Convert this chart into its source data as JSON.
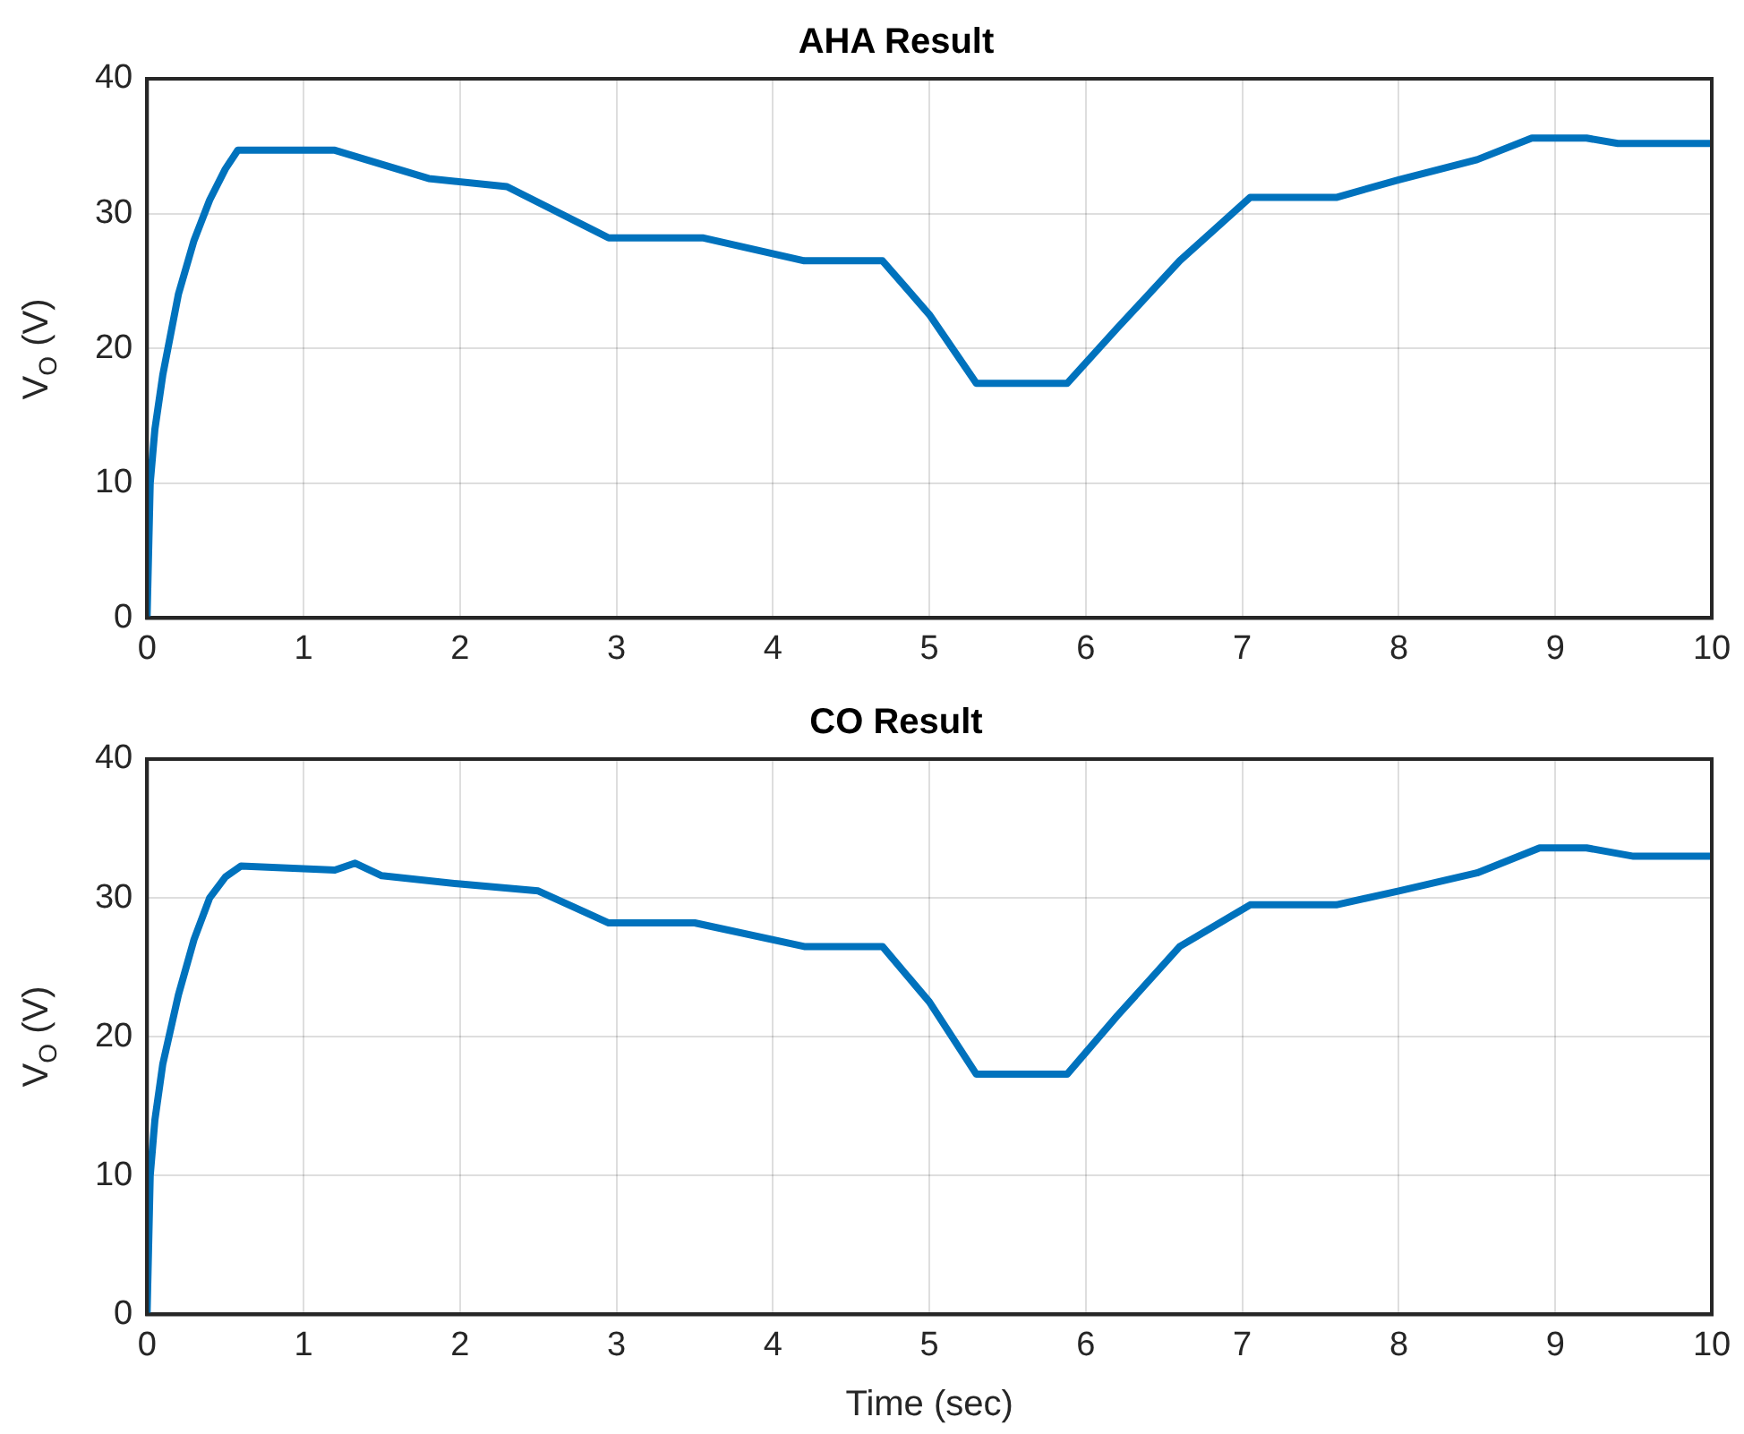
{
  "chart_data": [
    {
      "type": "line",
      "title": "AHA Result",
      "ylabel": "V$_{O}$ (V)",
      "xlim": [
        0,
        10
      ],
      "xticks": [
        0,
        1,
        2,
        3,
        4,
        5,
        6,
        7,
        8,
        9,
        10
      ],
      "ylim": [
        0,
        40
      ],
      "yticks": [
        0,
        10,
        20,
        30,
        40
      ],
      "grid": true,
      "legend": false,
      "marker": "none",
      "line_style": "solid",
      "series": [
        {
          "color": "#0072bd",
          "x": [
            0,
            0.02,
            0.05,
            0.1,
            0.2,
            0.3,
            0.4,
            0.5,
            0.58,
            1.2,
            1.8,
            2.3,
            2.95,
            3.55,
            4.2,
            4.7,
            5.0,
            5.3,
            5.88,
            6.2,
            6.6,
            7.05,
            7.6,
            8.0,
            8.5,
            8.85,
            9.2,
            9.4,
            10
          ],
          "values": [
            0,
            10,
            14,
            18,
            24,
            28,
            31,
            33.3,
            34.7,
            34.7,
            32.6,
            32,
            28.2,
            28.2,
            26.5,
            26.5,
            22.5,
            17.4,
            17.4,
            21.5,
            26.5,
            31.2,
            31.2,
            32.5,
            34,
            35.6,
            35.6,
            35.2,
            35.2
          ]
        }
      ]
    },
    {
      "type": "line",
      "title": "CO Result",
      "xlabel": "Time (sec)",
      "ylabel": "V$_{O}$ (V)",
      "xlim": [
        0,
        10
      ],
      "xticks": [
        0,
        1,
        2,
        3,
        4,
        5,
        6,
        7,
        8,
        9,
        10
      ],
      "ylim": [
        0,
        40
      ],
      "yticks": [
        0,
        10,
        20,
        30,
        40
      ],
      "grid": true,
      "legend": false,
      "marker": "none",
      "line_style": "solid",
      "series": [
        {
          "color": "#0072bd",
          "x": [
            0,
            0.02,
            0.05,
            0.1,
            0.2,
            0.3,
            0.4,
            0.5,
            0.6,
            1.2,
            1.33,
            1.5,
            2,
            2.5,
            2.95,
            3.5,
            4.2,
            4.7,
            5.0,
            5.3,
            5.88,
            6.2,
            6.6,
            7.05,
            7.6,
            8.0,
            8.5,
            8.9,
            9.2,
            9.5,
            10
          ],
          "values": [
            0,
            10,
            14,
            18,
            23,
            27,
            30,
            31.5,
            32.3,
            32,
            32.5,
            31.6,
            31,
            30.5,
            28.2,
            28.2,
            26.5,
            26.5,
            22.5,
            17.3,
            17.3,
            21.5,
            26.5,
            29.5,
            29.5,
            30.5,
            31.8,
            33.6,
            33.6,
            33,
            33
          ]
        }
      ]
    }
  ]
}
